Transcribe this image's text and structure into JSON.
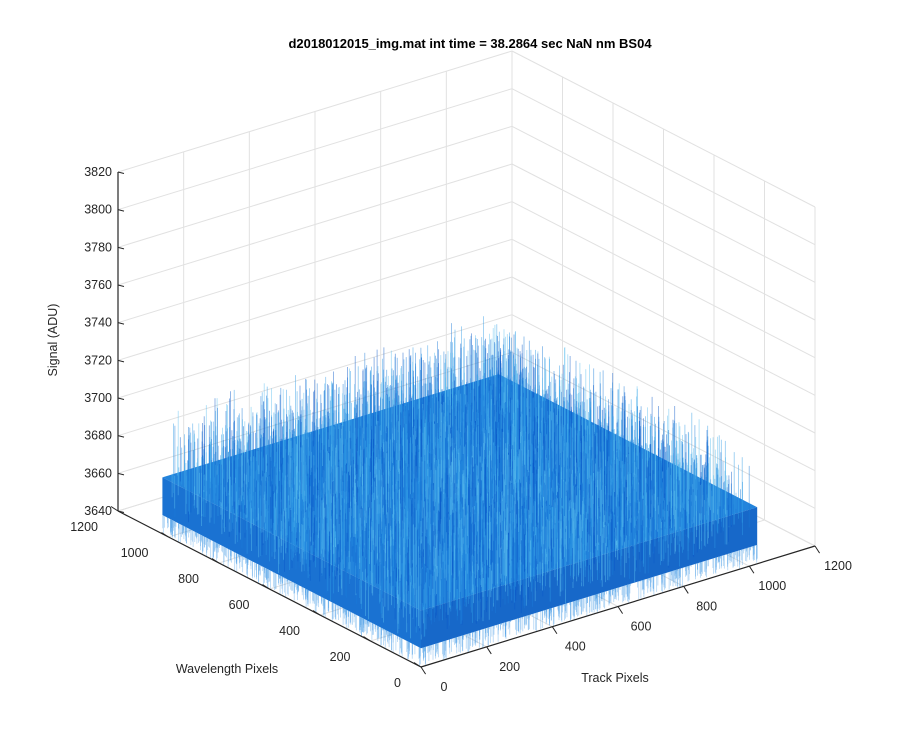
{
  "chart_data": {
    "type": "surface",
    "title": "d2018012015_img.mat int time = 38.2864 sec  NaN nm BS04",
    "xlabel": "Track Pixels",
    "ylabel": "Wavelength Pixels",
    "zlabel": "Signal (ADU)",
    "xlim": [
      0,
      1200
    ],
    "ylim": [
      0,
      1200
    ],
    "zlim": [
      3640,
      3820
    ],
    "x_ticks": [
      0,
      200,
      400,
      600,
      800,
      1000,
      1200
    ],
    "y_ticks": [
      0,
      200,
      400,
      600,
      800,
      1000,
      1200
    ],
    "z_ticks": [
      3640,
      3660,
      3680,
      3700,
      3720,
      3740,
      3760,
      3780,
      3800,
      3820
    ],
    "surface_extent": {
      "x": [
        0,
        1024
      ],
      "y": [
        0,
        1024
      ]
    },
    "surface_level": 3670,
    "noise_range": [
      3650,
      3705
    ],
    "grid": true,
    "colormap": [
      "#0a58c8",
      "#1a7ad8",
      "#2f9ae6",
      "#5cc0ee"
    ]
  }
}
